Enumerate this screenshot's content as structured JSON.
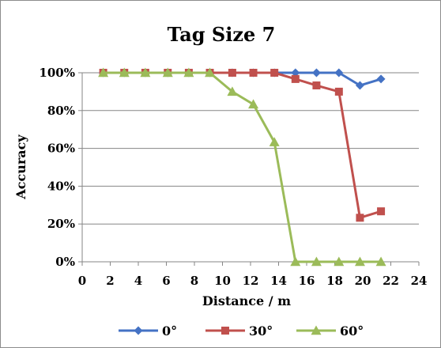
{
  "chart_data": {
    "type": "line",
    "title": "Tag Size 7",
    "xlabel": "Distance / m",
    "ylabel": "Accuracy",
    "xlim": [
      0,
      24
    ],
    "ylim": [
      0,
      100
    ],
    "x_ticks": [
      0,
      2,
      4,
      6,
      8,
      10,
      12,
      14,
      16,
      18,
      20,
      22,
      24
    ],
    "y_ticks": [
      0,
      20,
      40,
      60,
      80,
      100
    ],
    "y_tick_format": "percent",
    "grid": "horizontal",
    "legend_position": "bottom",
    "series": [
      {
        "name": "0°",
        "color": "#4472c4",
        "marker": "diamond",
        "x": [
          1.5,
          3.0,
          4.5,
          6.1,
          7.6,
          9.1,
          10.7,
          12.2,
          13.7,
          15.2,
          16.7,
          18.3,
          19.8,
          21.3
        ],
        "y": [
          100,
          100,
          100,
          100,
          100,
          100,
          100,
          100,
          100,
          100,
          100,
          100,
          93.3,
          96.7
        ]
      },
      {
        "name": "30°",
        "color": "#c0504d",
        "marker": "square",
        "x": [
          1.5,
          3.0,
          4.5,
          6.1,
          7.6,
          9.1,
          10.7,
          12.2,
          13.7,
          15.2,
          16.7,
          18.3,
          19.8,
          21.3
        ],
        "y": [
          100,
          100,
          100,
          100,
          100,
          100,
          100,
          100,
          100,
          96.7,
          93.3,
          90,
          23.3,
          26.7
        ]
      },
      {
        "name": "60°",
        "color": "#9bbb59",
        "marker": "triangle",
        "x": [
          1.5,
          3.0,
          4.5,
          6.1,
          7.6,
          9.1,
          10.7,
          12.2,
          13.7,
          15.2,
          16.7,
          18.3,
          19.8,
          21.3
        ],
        "y": [
          100,
          100,
          100,
          100,
          100,
          100,
          90,
          83.3,
          63.3,
          0,
          0,
          0,
          0,
          0
        ]
      }
    ]
  }
}
